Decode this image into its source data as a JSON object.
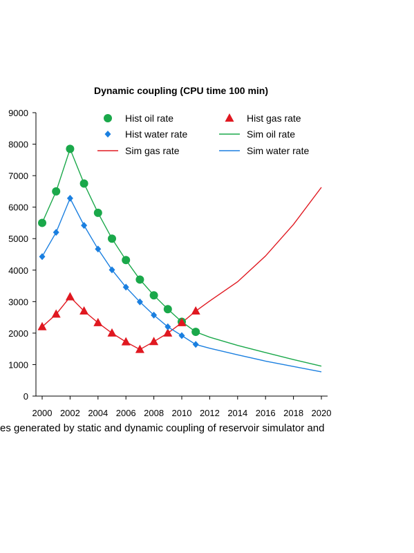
{
  "chart_data": {
    "type": "line",
    "title": "Dynamic coupling (CPU time 100 min)",
    "xlabel": "",
    "ylabel": "",
    "xlim": [
      2000,
      2020
    ],
    "ylim": [
      0,
      9000
    ],
    "x_ticks": [
      "2000",
      "2002",
      "2004",
      "2006",
      "2008",
      "2010",
      "2012",
      "2014",
      "2016",
      "2018",
      "2020"
    ],
    "y_ticks": [
      "0",
      "1000",
      "2000",
      "3000",
      "4000",
      "5000",
      "6000",
      "7000",
      "8000",
      "9000"
    ],
    "legend_position": "top-right",
    "colors": {
      "oil": "#1aa84a",
      "water": "#1a7fe0",
      "gas": "#e01820"
    },
    "series": [
      {
        "name": "Hist oil rate",
        "marker": "circle",
        "color": "#1aa84a",
        "x": [
          2000,
          2001,
          2002,
          2003,
          2004,
          2005,
          2006,
          2007,
          2008,
          2009,
          2010,
          2011
        ],
        "y": [
          5500,
          6500,
          7850,
          6750,
          5820,
          5000,
          4320,
          3700,
          3200,
          2760,
          2360,
          2040
        ]
      },
      {
        "name": "Hist gas rate",
        "marker": "triangle",
        "color": "#e01820",
        "x": [
          2000,
          2001,
          2002,
          2003,
          2004,
          2005,
          2006,
          2007,
          2008,
          2009,
          2010,
          2011
        ],
        "y": [
          2200,
          2600,
          3150,
          2700,
          2330,
          2000,
          1720,
          1480,
          1730,
          2000,
          2330,
          2700
        ]
      },
      {
        "name": "Hist water rate",
        "marker": "diamond",
        "color": "#1a7fe0",
        "x": [
          2000,
          2001,
          2002,
          2003,
          2004,
          2005,
          2006,
          2007,
          2008,
          2009,
          2010,
          2011
        ],
        "y": [
          4430,
          5200,
          6280,
          5420,
          4670,
          4010,
          3460,
          2990,
          2570,
          2200,
          1920,
          1640
        ]
      },
      {
        "name": "Sim oil rate",
        "line": true,
        "color": "#1aa84a",
        "x": [
          2000,
          2001,
          2002,
          2003,
          2004,
          2005,
          2006,
          2007,
          2008,
          2009,
          2010,
          2011,
          2012,
          2014,
          2016,
          2018,
          2020
        ],
        "y": [
          5500,
          6500,
          7850,
          6750,
          5820,
          5000,
          4320,
          3700,
          3200,
          2760,
          2360,
          2040,
          1870,
          1610,
          1380,
          1160,
          950
        ]
      },
      {
        "name": "Sim gas rate",
        "line": true,
        "color": "#e01820",
        "x": [
          2000,
          2001,
          2002,
          2003,
          2004,
          2005,
          2006,
          2007,
          2008,
          2009,
          2010,
          2011,
          2012,
          2014,
          2016,
          2018,
          2020
        ],
        "y": [
          2200,
          2600,
          3150,
          2700,
          2330,
          2000,
          1720,
          1480,
          1730,
          2000,
          2330,
          2700,
          3020,
          3630,
          4450,
          5450,
          6630
        ]
      },
      {
        "name": "Sim water rate",
        "line": true,
        "color": "#1a7fe0",
        "x": [
          2000,
          2001,
          2002,
          2003,
          2004,
          2005,
          2006,
          2007,
          2008,
          2009,
          2010,
          2011,
          2012,
          2014,
          2016,
          2018,
          2020
        ],
        "y": [
          4430,
          5200,
          6280,
          5420,
          4670,
          4010,
          3460,
          2990,
          2570,
          2200,
          1920,
          1640,
          1520,
          1310,
          1110,
          940,
          770
        ]
      }
    ]
  },
  "caption": "es generated by static and dynamic coupling of reservoir simulator and"
}
